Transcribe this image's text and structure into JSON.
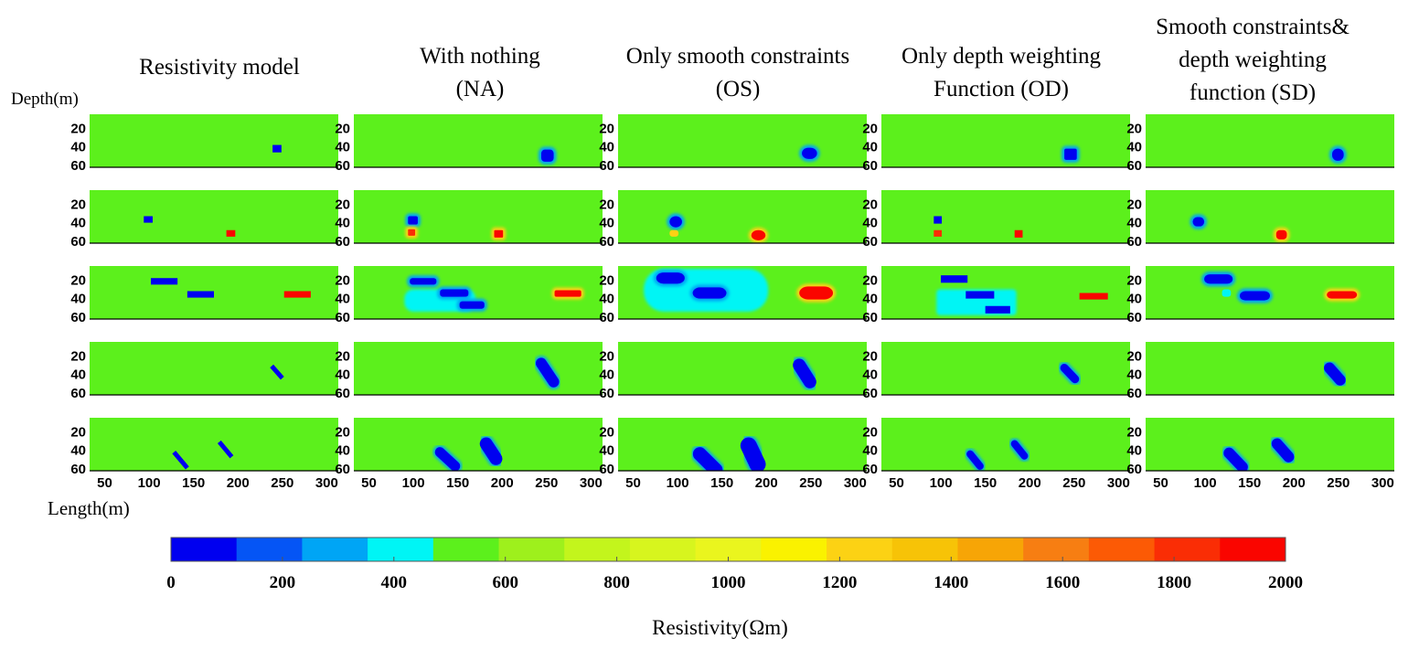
{
  "figure": {
    "column_titles": [
      [
        "Resistivity model"
      ],
      [
        "With nothing",
        "(NA)"
      ],
      [
        "Only smooth constraints",
        "(OS)"
      ],
      [
        "Only depth weighting",
        "Function (OD)"
      ],
      [
        "Smooth constraints&",
        "depth weighting",
        "function (SD)"
      ]
    ],
    "depth_axis_label": "Depth(m)",
    "length_axis_label": "Length(m)",
    "colorbar_label": "Resistivity(Ωm)"
  },
  "chart_data": {
    "type": "heatmap",
    "layout": "5 rows x 5 columns of resistivity sections",
    "columns": [
      "Resistivity model",
      "With nothing (NA)",
      "Only smooth constraints (OS)",
      "Only depth weighting Function (OD)",
      "Smooth constraints& depth weighting function (SD)"
    ],
    "x_ticks": [
      50,
      100,
      150,
      200,
      250,
      300
    ],
    "xlim": [
      33,
      313
    ],
    "y_ticks": [
      20,
      40,
      60
    ],
    "ylim": [
      5,
      62
    ],
    "y_reversed": true,
    "background_resistivity": 500,
    "background_color": "#5cf01c",
    "colorbar": {
      "range": [
        0,
        2000
      ],
      "ticks": [
        0,
        200,
        400,
        600,
        800,
        1000,
        1200,
        1400,
        1600,
        1800,
        2000
      ],
      "colors": [
        "#0000f0",
        "#0555f5",
        "#00a5f5",
        "#00f5f5",
        "#5cf01c",
        "#9ef01c",
        "#c3f51c",
        "#d7f51e",
        "#eaf51e",
        "#faf200",
        "#fcd214",
        "#f7c307",
        "#f7a506",
        "#f77e12",
        "#fc5a05",
        "#fa2d05",
        "#fa0500"
      ]
    },
    "rows": [
      [
        [
          {
            "x": 239,
            "y": 38,
            "w": 10,
            "h": 8,
            "color": "#0000f0"
          }
        ],
        [
          {
            "x": 244,
            "y": 43,
            "w": 14,
            "h": 13,
            "color": "#0000f0",
            "halo": "#00a5f5",
            "r": 4
          }
        ],
        [
          {
            "x": 240,
            "y": 41,
            "w": 17,
            "h": 12,
            "color": "#0000f0",
            "halo": "#00a5f5",
            "r": 7
          }
        ],
        [
          {
            "x": 239,
            "y": 42,
            "w": 14,
            "h": 12,
            "color": "#0000f0",
            "halo": "#00a5f5",
            "r": 2
          }
        ],
        [
          {
            "x": 243,
            "y": 42,
            "w": 13,
            "h": 13,
            "color": "#0000f0",
            "halo": "#00a5f5",
            "r": 6
          }
        ]
      ],
      [
        [
          {
            "x": 94,
            "y": 33,
            "w": 10,
            "h": 7,
            "color": "#0000f0"
          },
          {
            "x": 187,
            "y": 48,
            "w": 10,
            "h": 7,
            "color": "#fa0500"
          }
        ],
        [
          {
            "x": 94,
            "y": 33,
            "w": 11,
            "h": 9,
            "color": "#0000f0",
            "halo": "#00a5f5",
            "r": 2
          },
          {
            "x": 94,
            "y": 47,
            "w": 8,
            "h": 7,
            "color": "#fa2d05",
            "halo": "#fcd214",
            "r": 1
          },
          {
            "x": 191,
            "y": 48,
            "w": 10,
            "h": 8,
            "color": "#fa0500",
            "halo": "#fcd214",
            "r": 1
          }
        ],
        [
          {
            "x": 91,
            "y": 33,
            "w": 14,
            "h": 12,
            "color": "#0000f0",
            "halo": "#00a5f5",
            "r": 7
          },
          {
            "x": 91,
            "y": 48,
            "w": 10,
            "h": 7,
            "color": "#fcd214",
            "r": 3
          },
          {
            "x": 183,
            "y": 48,
            "w": 16,
            "h": 11,
            "color": "#fa0500",
            "halo": "#fcd214",
            "r": 8
          }
        ],
        [
          {
            "x": 92,
            "y": 33,
            "w": 9,
            "h": 8,
            "color": "#0000f0"
          },
          {
            "x": 92,
            "y": 48,
            "w": 9,
            "h": 7,
            "color": "#fa2d05"
          },
          {
            "x": 183,
            "y": 48,
            "w": 9,
            "h": 8,
            "color": "#fa0500"
          }
        ],
        [
          {
            "x": 86,
            "y": 34,
            "w": 13,
            "h": 10,
            "color": "#0000f0",
            "halo": "#00a5f5",
            "r": 5
          },
          {
            "x": 180,
            "y": 48,
            "w": 12,
            "h": 10,
            "color": "#fa0500",
            "halo": "#fcd214",
            "r": 4
          }
        ]
      ],
      [
        [
          {
            "x": 102,
            "y": 18,
            "w": 30,
            "h": 7,
            "color": "#0000f0"
          },
          {
            "x": 143,
            "y": 32,
            "w": 30,
            "h": 7,
            "color": "#0000f0"
          },
          {
            "x": 252,
            "y": 32,
            "w": 30,
            "h": 7,
            "color": "#fa0500"
          }
        ],
        [
          {
            "x": 96,
            "y": 18,
            "w": 30,
            "h": 7,
            "color": "#0000f0",
            "halo": "#00a5f5",
            "r": 3
          },
          {
            "x": 130,
            "y": 30,
            "w": 32,
            "h": 8,
            "color": "#0000f0",
            "halo": "#00a5f5",
            "r": 3
          },
          {
            "x": 152,
            "y": 43,
            "w": 28,
            "h": 8,
            "color": "#0000f0",
            "halo": "#00a5f5",
            "r": 3
          },
          {
            "x": 90,
            "y": 30,
            "w": 80,
            "h": 24,
            "color": "#00f5f5",
            "r": 10,
            "under": true
          },
          {
            "x": 259,
            "y": 31,
            "w": 30,
            "h": 7,
            "color": "#fa0500",
            "halo": "#fcd214",
            "r": 2
          }
        ],
        [
          {
            "x": 76,
            "y": 12,
            "w": 32,
            "h": 12,
            "color": "#0000f0",
            "halo": "#00a5f5",
            "r": 8
          },
          {
            "x": 117,
            "y": 28,
            "w": 38,
            "h": 12,
            "color": "#0000f0",
            "halo": "#00a5f5",
            "r": 8
          },
          {
            "x": 62,
            "y": 8,
            "w": 140,
            "h": 46,
            "color": "#00f5f5",
            "r": 22,
            "under": true
          },
          {
            "x": 237,
            "y": 27,
            "w": 38,
            "h": 14,
            "color": "#fa0500",
            "halo": "#fcd214",
            "r": 10
          }
        ],
        [
          {
            "x": 100,
            "y": 15,
            "w": 30,
            "h": 8,
            "color": "#0000f0"
          },
          {
            "x": 128,
            "y": 32,
            "w": 32,
            "h": 8,
            "color": "#0000f0"
          },
          {
            "x": 150,
            "y": 48,
            "w": 28,
            "h": 8,
            "color": "#0000f0"
          },
          {
            "x": 95,
            "y": 30,
            "w": 90,
            "h": 28,
            "color": "#00f5f5",
            "r": 4,
            "under": true
          },
          {
            "x": 256,
            "y": 34,
            "w": 32,
            "h": 7,
            "color": "#fa0500"
          }
        ],
        [
          {
            "x": 99,
            "y": 14,
            "w": 32,
            "h": 10,
            "color": "#0000f0",
            "halo": "#00a5f5",
            "r": 6
          },
          {
            "x": 139,
            "y": 32,
            "w": 34,
            "h": 10,
            "color": "#0000f0",
            "halo": "#00a5f5",
            "r": 6
          },
          {
            "x": 119,
            "y": 30,
            "w": 10,
            "h": 8,
            "color": "#00f5f5",
            "r": 3
          },
          {
            "x": 237,
            "y": 32,
            "w": 34,
            "h": 8,
            "color": "#fa0500",
            "halo": "#fcd214",
            "r": 5
          }
        ]
      ],
      [
        [
          {
            "type": "diag",
            "x1": 238,
            "y1": 31,
            "x2": 250,
            "y2": 44,
            "color": "#0000f0",
            "width": 5
          }
        ],
        [
          {
            "type": "diag",
            "x1": 244,
            "y1": 28,
            "x2": 258,
            "y2": 48,
            "color": "#0000f0",
            "halo": "#00a5f5",
            "width": 12
          }
        ],
        [
          {
            "type": "diag",
            "x1": 237,
            "y1": 30,
            "x2": 249,
            "y2": 48,
            "color": "#0000f0",
            "halo": "#00a5f5",
            "width": 14
          }
        ],
        [
          {
            "type": "diag",
            "x1": 239,
            "y1": 33,
            "x2": 251,
            "y2": 45,
            "color": "#0000f0",
            "halo": "#00a5f5",
            "width": 9
          }
        ],
        [
          {
            "type": "diag",
            "x1": 240,
            "y1": 33,
            "x2": 252,
            "y2": 46,
            "color": "#0000f0",
            "halo": "#00a5f5",
            "width": 12
          }
        ]
      ],
      [
        [
          {
            "type": "diag",
            "x1": 128,
            "y1": 42,
            "x2": 143,
            "y2": 59,
            "color": "#0000f0",
            "width": 5
          },
          {
            "type": "diag",
            "x1": 179,
            "y1": 31,
            "x2": 193,
            "y2": 47,
            "color": "#0000f0",
            "width": 5
          }
        ],
        [
          {
            "type": "diag",
            "x1": 130,
            "y1": 42,
            "x2": 147,
            "y2": 57,
            "color": "#0000f0",
            "halo": "#00a5f5",
            "width": 11
          },
          {
            "type": "diag",
            "x1": 182,
            "y1": 33,
            "x2": 193,
            "y2": 49,
            "color": "#0000f0",
            "halo": "#00a5f5",
            "width": 14
          }
        ],
        [
          {
            "type": "diag",
            "x1": 125,
            "y1": 44,
            "x2": 143,
            "y2": 61,
            "color": "#0000f0",
            "halo": "#00a5f5",
            "width": 15
          },
          {
            "type": "diag",
            "x1": 180,
            "y1": 35,
            "x2": 190,
            "y2": 55,
            "color": "#0000f0",
            "halo": "#00a5f5",
            "width": 18
          }
        ],
        [
          {
            "type": "diag",
            "x1": 133,
            "y1": 44,
            "x2": 144,
            "y2": 57,
            "color": "#0000f0",
            "halo": "#00a5f5",
            "width": 8
          },
          {
            "type": "diag",
            "x1": 183,
            "y1": 33,
            "x2": 194,
            "y2": 46,
            "color": "#0000f0",
            "halo": "#00a5f5",
            "width": 8
          }
        ],
        [
          {
            "type": "diag",
            "x1": 127,
            "y1": 43,
            "x2": 142,
            "y2": 58,
            "color": "#0000f0",
            "halo": "#00a5f5",
            "width": 12
          },
          {
            "type": "diag",
            "x1": 181,
            "y1": 33,
            "x2": 194,
            "y2": 47,
            "color": "#0000f0",
            "halo": "#00a5f5",
            "width": 12
          }
        ]
      ]
    ]
  }
}
